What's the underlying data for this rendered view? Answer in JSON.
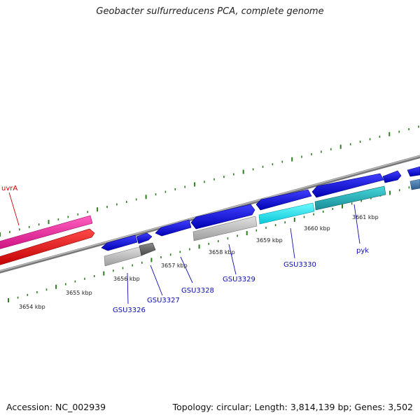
{
  "title": "Geobacter sulfurreducens PCA, complete genome",
  "footer": {
    "accession": "Accession: NC_002939",
    "summary": "Topology: circular; Length: 3,814,139 bp; Genes: 3,502"
  },
  "colors": {
    "tick": "#2e7d1f",
    "backbone": "#8c8c8c",
    "forward_gene": "#1010d8",
    "reverse_gene_red": "#ee1111",
    "reverse_gene_pink": "#ee2299",
    "rna_cyan": "#14e6f0",
    "rna_teal": "#22bcc4",
    "gray_gene": "#bdbdbd",
    "dark_gray_gene": "#6d6d6d",
    "steel_gene": "#4d7fb0",
    "gene_label": "#0c0cb0",
    "red_label": "#cc0000"
  },
  "kbp_ticks": [
    {
      "label": "3654 kbp"
    },
    {
      "label": "3655 kbp"
    },
    {
      "label": "3656 kbp"
    },
    {
      "label": "3657 kbp"
    },
    {
      "label": "3658 kbp"
    },
    {
      "label": "3659 kbp"
    },
    {
      "label": "3660 kbp"
    },
    {
      "label": "3661 kbp"
    }
  ],
  "gene_labels": [
    {
      "name": "uvrA",
      "color": "red"
    },
    {
      "name": "GSU3326",
      "color": "blue"
    },
    {
      "name": "GSU3327",
      "color": "blue"
    },
    {
      "name": "GSU3328",
      "color": "blue"
    },
    {
      "name": "GSU3329",
      "color": "blue"
    },
    {
      "name": "GSU3330",
      "color": "blue"
    },
    {
      "name": "pyk",
      "color": "blue"
    }
  ]
}
